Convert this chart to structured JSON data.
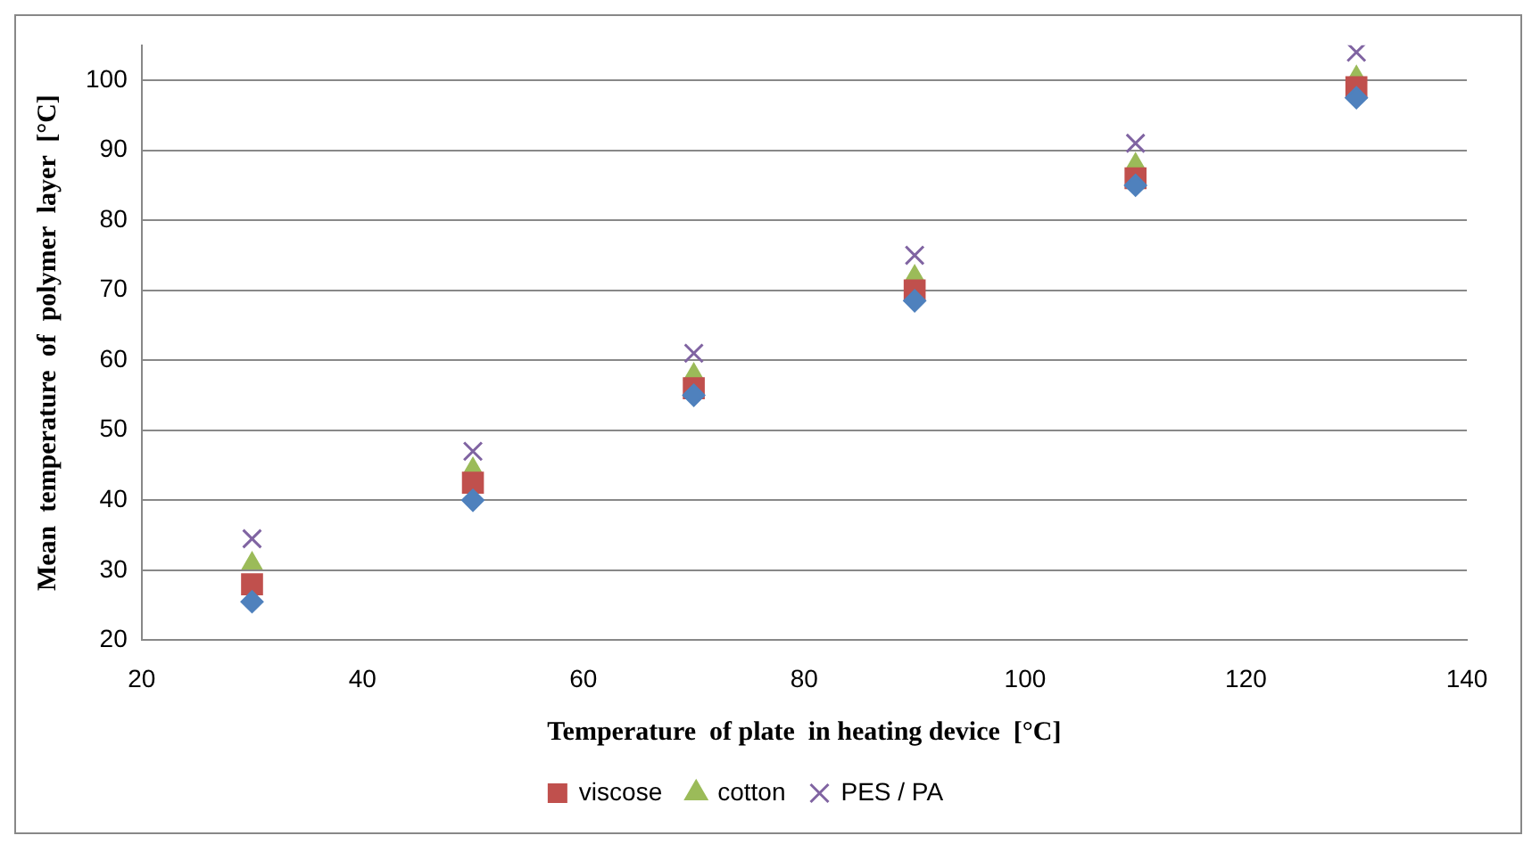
{
  "chart_data": {
    "type": "scatter",
    "xlabel": "Temperature  of plate  in heating device  [°C]",
    "ylabel": "Mean  temperature  of  polymer  layer  [°C]",
    "x": [
      30,
      50,
      70,
      90,
      110,
      130
    ],
    "series": [
      {
        "color": "#4f81bd",
        "marker": "diamond",
        "values": [
          25.5,
          40,
          55,
          68.5,
          85,
          97.5
        ]
      },
      {
        "name": "viscose",
        "color": "#c0504d",
        "marker": "square",
        "values": [
          28,
          42.5,
          56,
          70,
          86,
          99
        ]
      },
      {
        "name": "cotton",
        "color": "#9bbb59",
        "marker": "triangle",
        "values": [
          31,
          44.5,
          58,
          72,
          88,
          100.5
        ]
      },
      {
        "name": "PES / PA",
        "color": "#8064a2",
        "marker": "cross",
        "values": [
          34.5,
          47,
          61,
          75,
          91,
          104
        ]
      }
    ],
    "xlim": [
      20,
      140
    ],
    "xticks": [
      20,
      40,
      60,
      80,
      100,
      120,
      140
    ],
    "ylim": [
      20,
      105
    ],
    "yticks": [
      20,
      30,
      40,
      50,
      60,
      70,
      80,
      90,
      100
    ],
    "grid": "y",
    "legend": "bottom"
  }
}
